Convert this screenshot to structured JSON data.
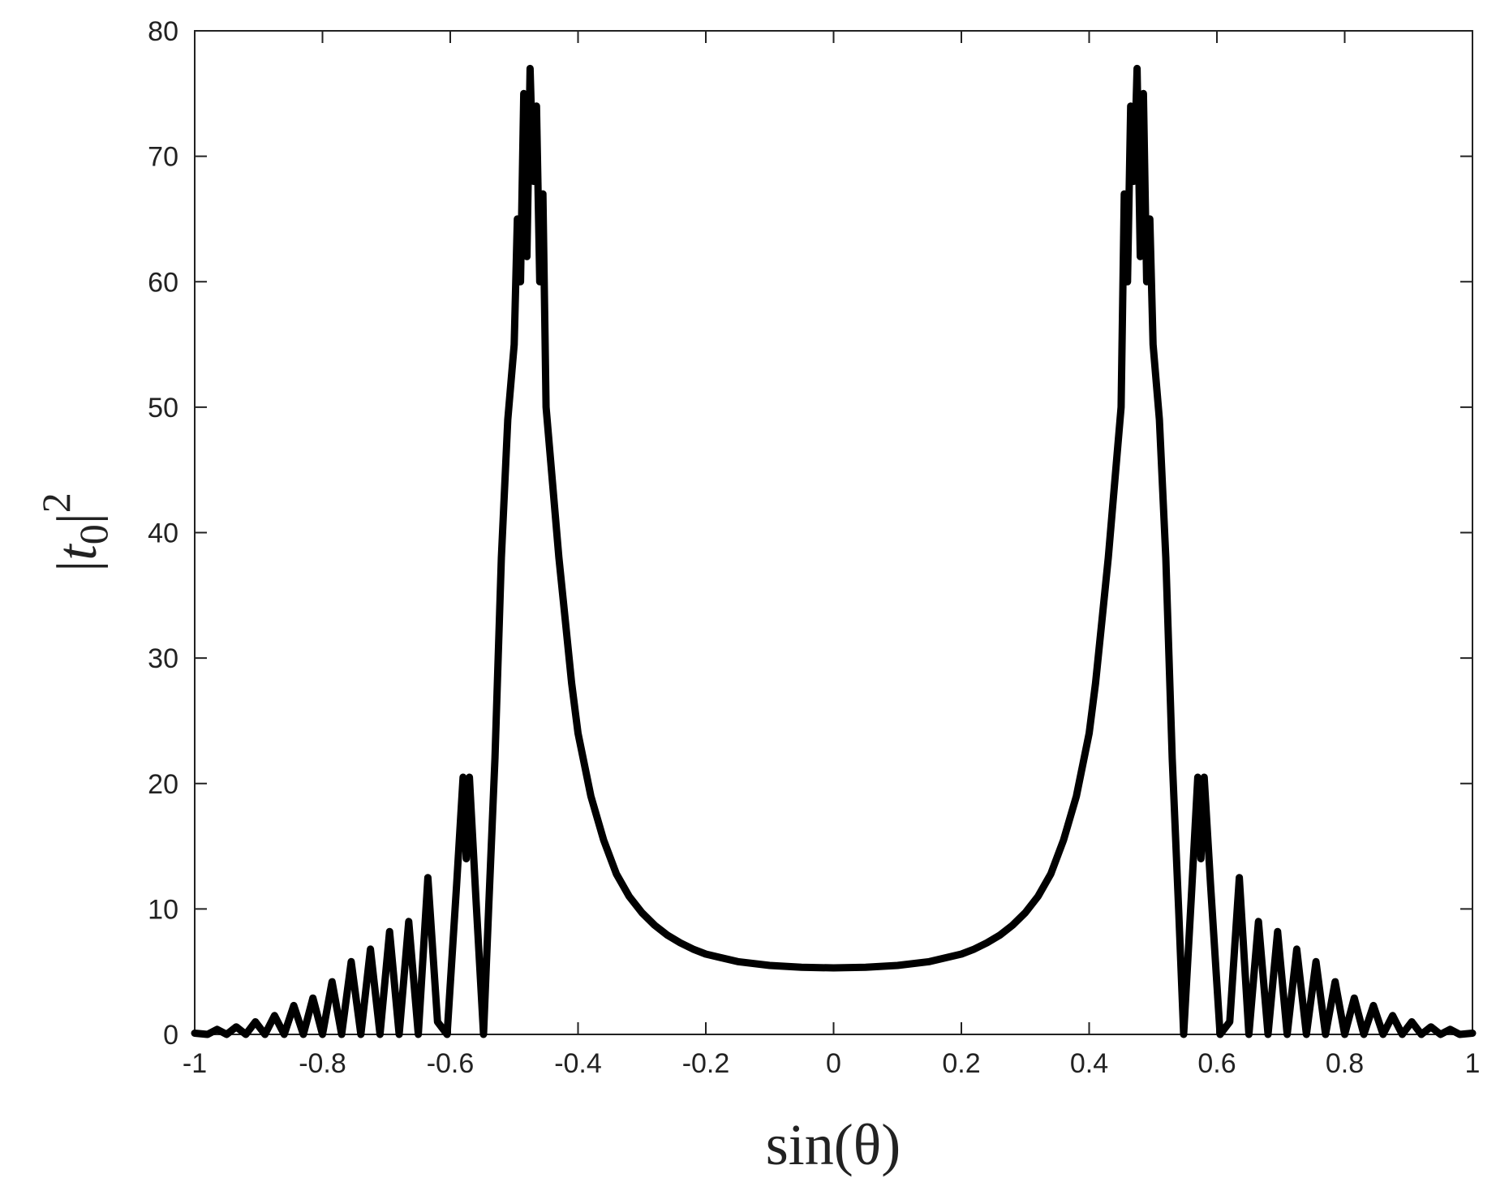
{
  "chart_data": {
    "type": "line",
    "title": "",
    "xlabel": "sin(θ)",
    "ylabel": "|t0|2",
    "ylabel_parts": {
      "bar_left": "|",
      "var": "t",
      "sub": "0",
      "bar_right": "|",
      "sup": "2"
    },
    "xlim": [
      -1,
      1
    ],
    "ylim": [
      0,
      80
    ],
    "x_ticks": [
      -1,
      -0.8,
      -0.6,
      -0.4,
      -0.2,
      0,
      0.2,
      0.4,
      0.6,
      0.8,
      1
    ],
    "x_tick_labels": [
      "-1",
      "-0.8",
      "-0.6",
      "-0.4",
      "-0.2",
      "0",
      "0.2",
      "0.4",
      "0.6",
      "0.8",
      "1"
    ],
    "y_ticks": [
      0,
      10,
      20,
      30,
      40,
      50,
      60,
      70,
      80
    ],
    "y_tick_labels": [
      "0",
      "10",
      "20",
      "30",
      "40",
      "50",
      "60",
      "70",
      "80"
    ],
    "grid": false,
    "legend": "none",
    "line_color": "#000000",
    "series": [
      {
        "x": [
          -1.0,
          -0.98,
          -0.965,
          -0.95,
          -0.935,
          -0.92,
          -0.905,
          -0.89,
          -0.875,
          -0.86,
          -0.845,
          -0.83,
          -0.815,
          -0.8,
          -0.785,
          -0.77,
          -0.755,
          -0.74,
          -0.725,
          -0.71,
          -0.695,
          -0.68,
          -0.665,
          -0.65,
          -0.635,
          -0.62,
          -0.605,
          -0.59,
          -0.58,
          -0.575,
          -0.57,
          -0.56,
          -0.548,
          -0.54,
          -0.53,
          -0.52,
          -0.51,
          -0.5,
          -0.495,
          -0.49,
          -0.485,
          -0.48,
          -0.475,
          -0.47,
          -0.465,
          -0.46,
          -0.455,
          -0.45,
          -0.44,
          -0.43,
          -0.42,
          -0.41,
          -0.4,
          -0.38,
          -0.36,
          -0.34,
          -0.32,
          -0.3,
          -0.28,
          -0.26,
          -0.24,
          -0.22,
          -0.2,
          -0.15,
          -0.1,
          -0.05,
          0.0,
          0.05,
          0.1,
          0.15,
          0.2,
          0.22,
          0.24,
          0.26,
          0.28,
          0.3,
          0.32,
          0.34,
          0.36,
          0.38,
          0.4,
          0.41,
          0.42,
          0.43,
          0.44,
          0.45,
          0.455,
          0.46,
          0.465,
          0.47,
          0.475,
          0.48,
          0.485,
          0.49,
          0.495,
          0.5,
          0.51,
          0.52,
          0.53,
          0.54,
          0.548,
          0.56,
          0.57,
          0.575,
          0.58,
          0.59,
          0.605,
          0.62,
          0.635,
          0.65,
          0.665,
          0.68,
          0.695,
          0.71,
          0.725,
          0.74,
          0.755,
          0.77,
          0.785,
          0.8,
          0.815,
          0.83,
          0.845,
          0.86,
          0.875,
          0.89,
          0.905,
          0.92,
          0.935,
          0.95,
          0.965,
          0.98,
          1.0
        ],
        "y": [
          0.1,
          0.0,
          0.4,
          0.0,
          0.6,
          0.0,
          1.0,
          0.0,
          1.5,
          0.0,
          2.3,
          0.0,
          2.9,
          0.0,
          4.2,
          0.0,
          5.8,
          0.0,
          6.8,
          0.0,
          8.2,
          0.0,
          9.0,
          0.0,
          12.5,
          1.0,
          0.0,
          12.0,
          20.5,
          14.0,
          20.5,
          11.0,
          0.0,
          10.0,
          22.0,
          38.0,
          49.0,
          55.0,
          65.0,
          60.0,
          75.0,
          62.0,
          77.0,
          68.0,
          74.0,
          60.0,
          67.0,
          50.0,
          44.0,
          38.0,
          33.0,
          28.0,
          24.0,
          19.0,
          15.5,
          12.8,
          11.0,
          9.7,
          8.7,
          7.9,
          7.3,
          6.8,
          6.4,
          5.8,
          5.5,
          5.35,
          5.3,
          5.35,
          5.5,
          5.8,
          6.4,
          6.8,
          7.3,
          7.9,
          8.7,
          9.7,
          11.0,
          12.8,
          15.5,
          19.0,
          24.0,
          28.0,
          33.0,
          38.0,
          44.0,
          50.0,
          67.0,
          60.0,
          74.0,
          68.0,
          77.0,
          62.0,
          75.0,
          60.0,
          65.0,
          55.0,
          49.0,
          38.0,
          22.0,
          10.0,
          0.0,
          11.0,
          20.5,
          14.0,
          20.5,
          12.0,
          0.0,
          1.0,
          12.5,
          0.0,
          9.0,
          0.0,
          8.2,
          0.0,
          6.8,
          0.0,
          5.8,
          0.0,
          4.2,
          0.0,
          2.9,
          0.0,
          2.3,
          0.0,
          1.5,
          0.0,
          1.0,
          0.0,
          0.6,
          0.0,
          0.4,
          0.0,
          0.1
        ]
      }
    ]
  }
}
